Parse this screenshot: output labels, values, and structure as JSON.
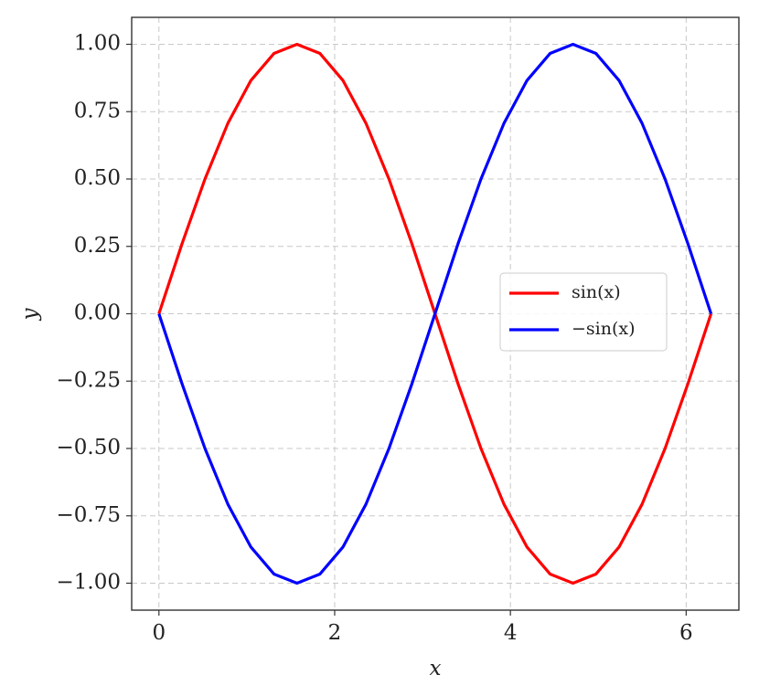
{
  "chart_data": {
    "type": "line",
    "xlabel": "x",
    "ylabel": "y",
    "x": [
      0,
      0.262,
      0.524,
      0.785,
      1.047,
      1.309,
      1.571,
      1.833,
      2.094,
      2.356,
      2.618,
      2.88,
      3.142,
      3.403,
      3.665,
      3.927,
      4.189,
      4.451,
      4.712,
      4.974,
      5.236,
      5.498,
      5.76,
      6.021,
      6.283
    ],
    "series": [
      {
        "name": "sin(x)",
        "color": "#ff0000",
        "values": [
          0,
          0.259,
          0.5,
          0.707,
          0.866,
          0.966,
          1,
          0.966,
          0.866,
          0.707,
          0.5,
          0.259,
          0,
          -0.259,
          -0.5,
          -0.707,
          -0.866,
          -0.966,
          -1,
          -0.966,
          -0.866,
          -0.707,
          -0.5,
          -0.259,
          0
        ]
      },
      {
        "name": "−sin(x)",
        "color": "#0000ff",
        "values": [
          0,
          -0.259,
          -0.5,
          -0.707,
          -0.866,
          -0.966,
          -1,
          -0.966,
          -0.866,
          -0.707,
          -0.5,
          -0.259,
          0,
          0.259,
          0.5,
          0.707,
          0.866,
          0.966,
          1,
          0.966,
          0.866,
          0.707,
          0.5,
          0.259,
          0
        ]
      }
    ],
    "xlim": [
      -0.31,
      6.6
    ],
    "ylim": [
      -1.1,
      1.1
    ],
    "xticks": [
      0,
      2,
      4,
      6
    ],
    "yticks": [
      {
        "value": -1,
        "label": "−1.00"
      },
      {
        "value": -0.75,
        "label": "−0.75"
      },
      {
        "value": -0.5,
        "label": "−0.50"
      },
      {
        "value": -0.25,
        "label": "−0.25"
      },
      {
        "value": 0,
        "label": "0.00"
      },
      {
        "value": 0.25,
        "label": "0.25"
      },
      {
        "value": 0.5,
        "label": "0.50"
      },
      {
        "value": 0.75,
        "label": "0.75"
      },
      {
        "value": 1,
        "label": "1.00"
      }
    ],
    "grid": true,
    "legend": "center right"
  }
}
